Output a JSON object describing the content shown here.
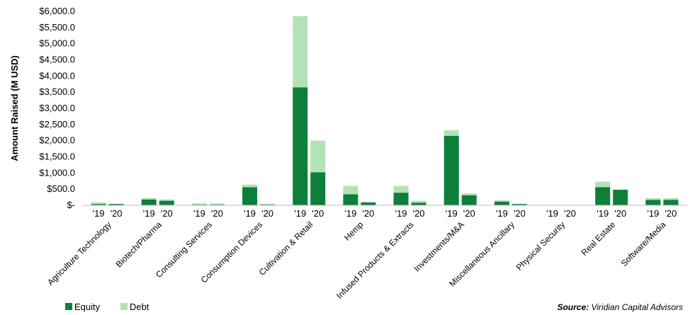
{
  "chart_data": {
    "type": "bar",
    "stacked": true,
    "ylabel": "Amount Raised (M USD)",
    "ylim": [
      0,
      6000
    ],
    "y_ticks": [
      "$-",
      "$500.0",
      "$1,000.0",
      "$1,500.0",
      "$2,000.0",
      "$2,500.0",
      "$3,000.0",
      "$3,500.0",
      "$4,000.0",
      "$4,500.0",
      "$5,000.0",
      "$5,500.0",
      "$6,000.0"
    ],
    "y_tick_values": [
      0,
      500,
      1000,
      1500,
      2000,
      2500,
      3000,
      3500,
      4000,
      4500,
      5000,
      5500,
      6000
    ],
    "year_labels": [
      "'19",
      "'20"
    ],
    "categories": [
      "Agriculture Technology",
      "Biotech/Pharma",
      "Consulting Services",
      "Consumption Devices",
      "Cultivation & Retail",
      "Hemp",
      "Infused Products & Extracts",
      "Investments/M&A",
      "Miscellaneous Ancillary",
      "Physical Security",
      "Real Estate",
      "Software/Media"
    ],
    "series": [
      {
        "name": "Equity",
        "color": "#0e7f3a",
        "values_2019": [
          40,
          180,
          20,
          560,
          3650,
          340,
          390,
          2150,
          110,
          0,
          560,
          170
        ],
        "values_2020": [
          40,
          140,
          20,
          20,
          1020,
          90,
          80,
          310,
          40,
          0,
          480,
          170
        ]
      },
      {
        "name": "Debt",
        "color": "#b3e2b6",
        "values_2019": [
          50,
          50,
          40,
          80,
          2200,
          260,
          210,
          170,
          50,
          0,
          170,
          50
        ],
        "values_2020": [
          0,
          40,
          40,
          30,
          980,
          10,
          60,
          60,
          0,
          0,
          0,
          50
        ]
      }
    ],
    "legend_position": "bottom-left",
    "grid": false
  },
  "source": {
    "label": "Source:",
    "text": " Viridian Capital Advisors"
  }
}
